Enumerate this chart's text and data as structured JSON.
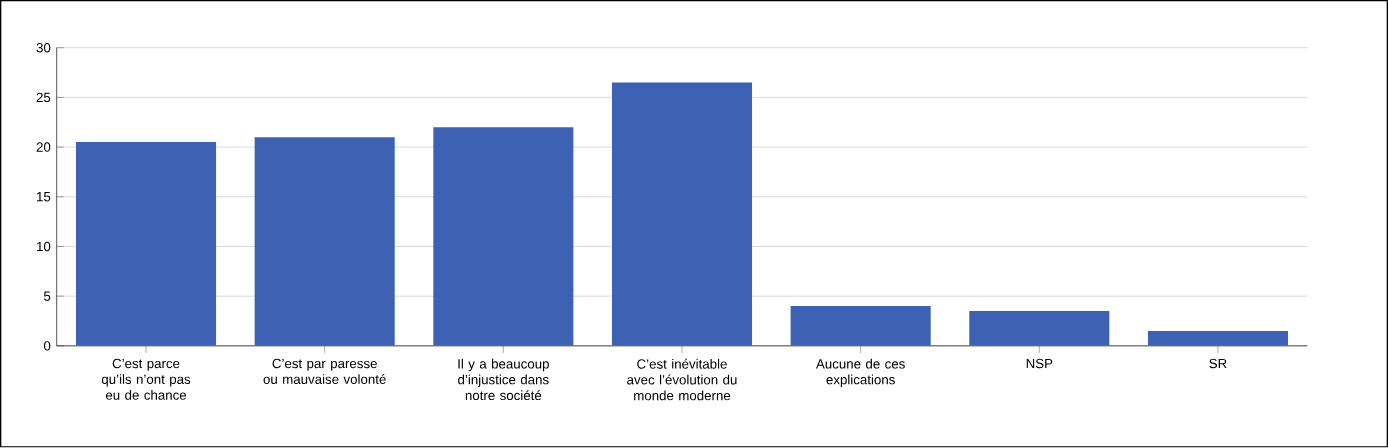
{
  "chart_data": {
    "type": "bar",
    "categories": [
      "C’est parce qu’ils n’ont pas eu de chance",
      "C’est par paresse ou mauvaise volonté",
      "Il y a beaucoup d’injustice dans notre société",
      "C’est inévitable avec l’évolution du monde moderne",
      "Aucune de ces explications",
      "NSP",
      "SR"
    ],
    "values": [
      20.5,
      21,
      22,
      26.5,
      4,
      3.5,
      1.5
    ],
    "color": "#3d62b3",
    "ylim": [
      0,
      30
    ],
    "yticks": [
      0,
      5,
      10,
      15,
      20,
      25,
      30
    ],
    "grid": "y"
  }
}
